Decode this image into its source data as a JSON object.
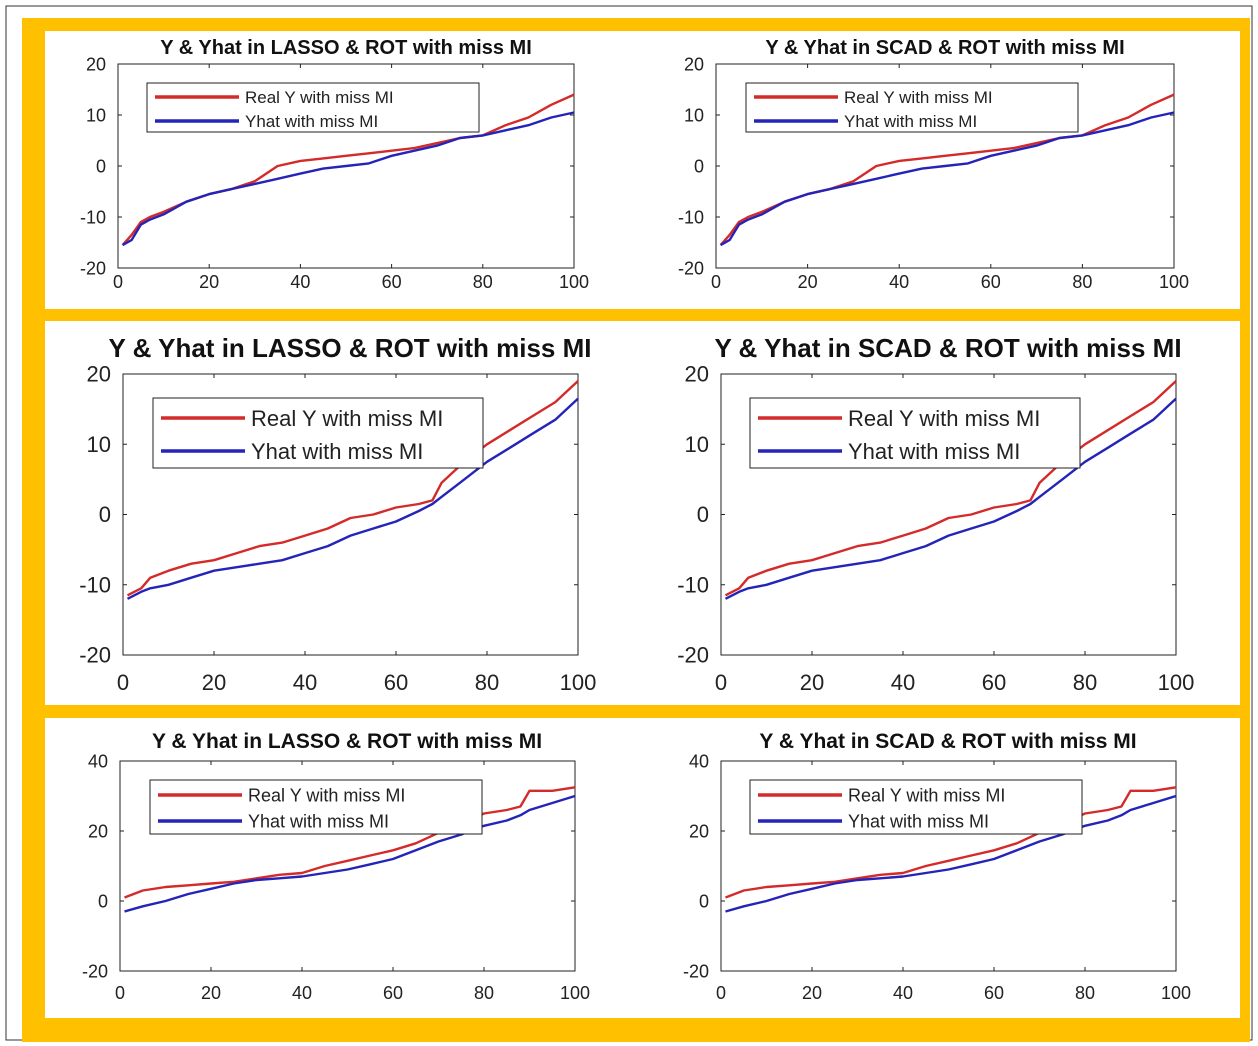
{
  "colors": {
    "background": "#ffffff",
    "border": "#ffc000",
    "frame_line": "#333333",
    "real_y": "#d42a2a",
    "yhat": "#2424b8",
    "axis": "#222222"
  },
  "chart_data": [
    {
      "type": "line",
      "title": "Y & Yhat in LASSO & ROT with miss MI",
      "xlim": [
        0,
        100
      ],
      "ylim": [
        -20,
        20
      ],
      "xticks": [
        0,
        20,
        40,
        60,
        80,
        100
      ],
      "yticks": [
        -20,
        -10,
        0,
        10,
        20
      ],
      "legend": "top-left",
      "x": [
        1,
        3,
        5,
        7,
        10,
        15,
        20,
        25,
        30,
        35,
        40,
        45,
        50,
        55,
        60,
        65,
        70,
        75,
        80,
        85,
        90,
        95,
        100
      ],
      "series": [
        {
          "name": "Real Y with miss MI",
          "color": "real_y",
          "values": [
            -15.5,
            -13.5,
            -11,
            -10,
            -9,
            -7,
            -5.5,
            -4.5,
            -3,
            0,
            1,
            1.5,
            2,
            2.5,
            3,
            3.5,
            4.5,
            5.5,
            6,
            8,
            9.5,
            12,
            14
          ]
        },
        {
          "name": "Yhat with miss MI",
          "color": "yhat",
          "values": [
            -15.5,
            -14.5,
            -11.5,
            -10.5,
            -9.5,
            -7,
            -5.5,
            -4.5,
            -3.5,
            -2.5,
            -1.5,
            -0.5,
            0,
            0.5,
            2,
            3,
            4,
            5.5,
            6,
            7,
            8,
            9.5,
            10.5
          ]
        }
      ]
    },
    {
      "type": "line",
      "title": "Y & Yhat in SCAD & ROT with miss MI",
      "xlim": [
        0,
        100
      ],
      "ylim": [
        -20,
        20
      ],
      "xticks": [
        0,
        20,
        40,
        60,
        80,
        100
      ],
      "yticks": [
        -20,
        -10,
        0,
        10,
        20
      ],
      "legend": "top-left",
      "x": [
        1,
        3,
        5,
        7,
        10,
        15,
        20,
        25,
        30,
        35,
        40,
        45,
        50,
        55,
        60,
        65,
        70,
        75,
        80,
        85,
        90,
        95,
        100
      ],
      "series": [
        {
          "name": "Real Y with miss MI",
          "color": "real_y",
          "values": [
            -15.5,
            -13.5,
            -11,
            -10,
            -9,
            -7,
            -5.5,
            -4.5,
            -3,
            0,
            1,
            1.5,
            2,
            2.5,
            3,
            3.5,
            4.5,
            5.5,
            6,
            8,
            9.5,
            12,
            14
          ]
        },
        {
          "name": "Yhat with miss MI",
          "color": "yhat",
          "values": [
            -15.5,
            -14.5,
            -11.5,
            -10.5,
            -9.5,
            -7,
            -5.5,
            -4.5,
            -3.5,
            -2.5,
            -1.5,
            -0.5,
            0,
            0.5,
            2,
            3,
            4,
            5.5,
            6,
            7,
            8,
            9.5,
            10.5
          ]
        }
      ]
    },
    {
      "type": "line",
      "title": "Y & Yhat in LASSO & ROT with miss MI",
      "xlim": [
        0,
        100
      ],
      "ylim": [
        -20,
        20
      ],
      "xticks": [
        0,
        20,
        40,
        60,
        80,
        100
      ],
      "yticks": [
        -20,
        -10,
        0,
        10,
        20
      ],
      "legend": "top-left",
      "x": [
        1,
        4,
        6,
        10,
        15,
        20,
        25,
        30,
        35,
        40,
        45,
        50,
        55,
        60,
        65,
        68,
        70,
        75,
        80,
        85,
        90,
        95,
        100
      ],
      "series": [
        {
          "name": "Real Y with miss MI",
          "color": "real_y",
          "values": [
            -11.5,
            -10.5,
            -9,
            -8,
            -7,
            -6.5,
            -5.5,
            -4.5,
            -4,
            -3,
            -2,
            -0.5,
            0,
            1,
            1.5,
            2,
            4.5,
            7.5,
            10,
            12,
            14,
            16,
            19
          ]
        },
        {
          "name": "Yhat with miss MI",
          "color": "yhat",
          "values": [
            -12,
            -11,
            -10.5,
            -10,
            -9,
            -8,
            -7.5,
            -7,
            -6.5,
            -5.5,
            -4.5,
            -3,
            -2,
            -1,
            0.5,
            1.5,
            2.5,
            5,
            7.5,
            9.5,
            11.5,
            13.5,
            16.5
          ]
        }
      ]
    },
    {
      "type": "line",
      "title": "Y & Yhat in SCAD & ROT with miss MI",
      "xlim": [
        0,
        100
      ],
      "ylim": [
        -20,
        20
      ],
      "xticks": [
        0,
        20,
        40,
        60,
        80,
        100
      ],
      "yticks": [
        -20,
        -10,
        0,
        10,
        20
      ],
      "legend": "top-left",
      "x": [
        1,
        4,
        6,
        10,
        15,
        20,
        25,
        30,
        35,
        40,
        45,
        50,
        55,
        60,
        65,
        68,
        70,
        75,
        80,
        85,
        90,
        95,
        100
      ],
      "series": [
        {
          "name": "Real Y with miss MI",
          "color": "real_y",
          "values": [
            -11.5,
            -10.5,
            -9,
            -8,
            -7,
            -6.5,
            -5.5,
            -4.5,
            -4,
            -3,
            -2,
            -0.5,
            0,
            1,
            1.5,
            2,
            4.5,
            7.5,
            10,
            12,
            14,
            16,
            19
          ]
        },
        {
          "name": "Yhat with miss MI",
          "color": "yhat",
          "values": [
            -12,
            -11,
            -10.5,
            -10,
            -9,
            -8,
            -7.5,
            -7,
            -6.5,
            -5.5,
            -4.5,
            -3,
            -2,
            -1,
            0.5,
            1.5,
            2.5,
            5,
            7.5,
            9.5,
            11.5,
            13.5,
            16.5
          ]
        }
      ]
    },
    {
      "type": "line",
      "title": "Y & Yhat in LASSO & ROT with miss MI",
      "xlim": [
        0,
        100
      ],
      "ylim": [
        -20,
        40
      ],
      "xticks": [
        0,
        20,
        40,
        60,
        80,
        100
      ],
      "yticks": [
        -20,
        0,
        20,
        40
      ],
      "legend": "top-left",
      "x": [
        1,
        5,
        10,
        15,
        20,
        25,
        30,
        35,
        40,
        45,
        50,
        55,
        60,
        65,
        70,
        75,
        80,
        85,
        88,
        90,
        95,
        100
      ],
      "series": [
        {
          "name": "Real Y with miss MI",
          "color": "real_y",
          "values": [
            1,
            3,
            4,
            4.5,
            5,
            5.5,
            6.5,
            7.5,
            8,
            10,
            11.5,
            13,
            14.5,
            16.5,
            19.5,
            22,
            25,
            26,
            27,
            31.5,
            31.5,
            32.5
          ]
        },
        {
          "name": "Yhat with miss MI",
          "color": "yhat",
          "values": [
            -3,
            -1.5,
            0,
            2,
            3.5,
            5,
            6,
            6.5,
            7,
            8,
            9,
            10.5,
            12,
            14.5,
            17,
            19,
            21.5,
            23,
            24.5,
            26,
            28,
            30
          ]
        }
      ]
    },
    {
      "type": "line",
      "title": "Y & Yhat in SCAD & ROT with miss MI",
      "xlim": [
        0,
        100
      ],
      "ylim": [
        -20,
        40
      ],
      "xticks": [
        0,
        20,
        40,
        60,
        80,
        100
      ],
      "yticks": [
        -20,
        0,
        20,
        40
      ],
      "legend": "top-left",
      "x": [
        1,
        5,
        10,
        15,
        20,
        25,
        30,
        35,
        40,
        45,
        50,
        55,
        60,
        65,
        70,
        75,
        80,
        85,
        88,
        90,
        95,
        100
      ],
      "series": [
        {
          "name": "Real Y with miss MI",
          "color": "real_y",
          "values": [
            1,
            3,
            4,
            4.5,
            5,
            5.5,
            6.5,
            7.5,
            8,
            10,
            11.5,
            13,
            14.5,
            16.5,
            19.5,
            22,
            25,
            26,
            27,
            31.5,
            31.5,
            32.5
          ]
        },
        {
          "name": "Yhat with miss MI",
          "color": "yhat",
          "values": [
            -3,
            -1.5,
            0,
            2,
            3.5,
            5,
            6,
            6.5,
            7,
            8,
            9,
            10.5,
            12,
            14.5,
            17,
            19,
            21.5,
            23,
            24.5,
            26,
            28,
            30
          ]
        }
      ]
    }
  ]
}
